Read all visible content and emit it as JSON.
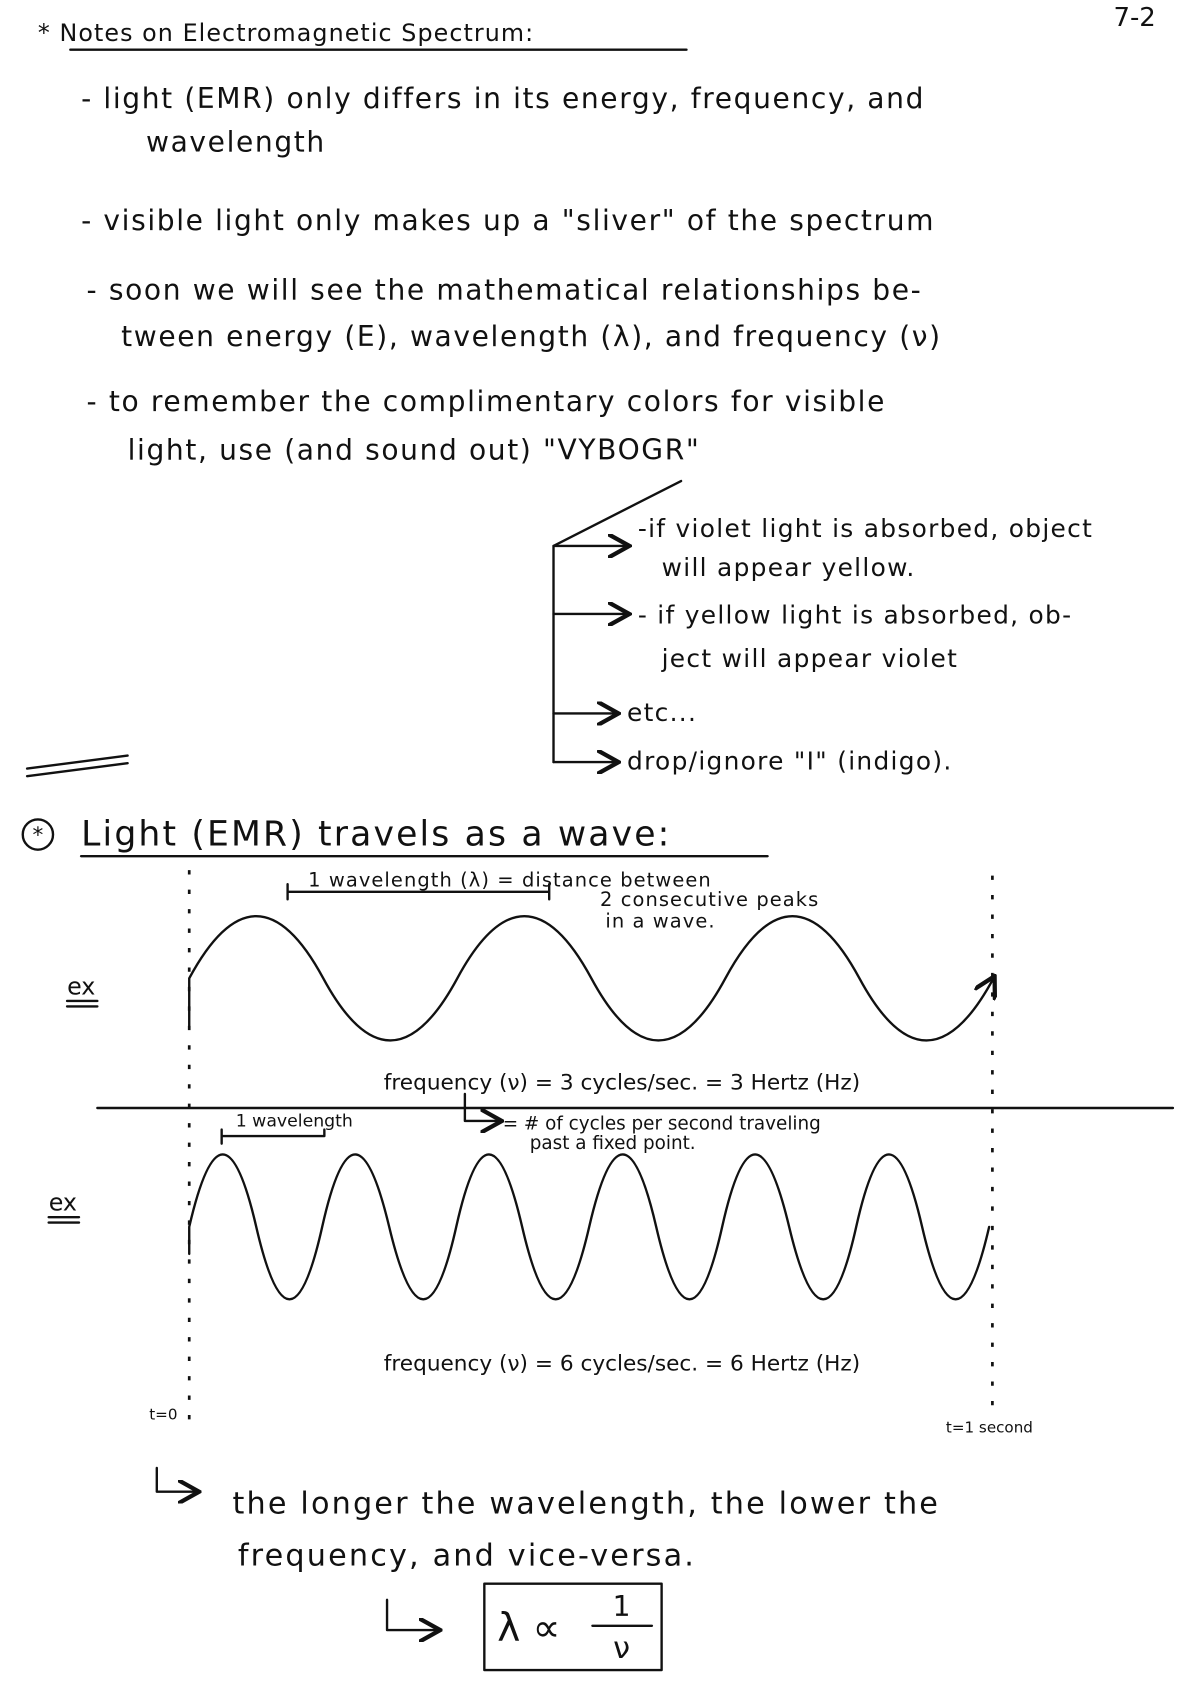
{
  "page_number": "7-2",
  "notes": {
    "title": "* Notes on Electromagnetic Spectrum:",
    "bullets": [
      [
        "- light (EMR) only differs in its energy, frequency, and",
        "wavelength"
      ],
      [
        "- visible light only makes up a \"sliver\" of the spectrum"
      ],
      [
        "- soon we will see the mathematical relationships be-",
        "tween energy (E), wavelength (λ), and frequency (ν)"
      ],
      [
        "- to remember the complimentary colors for visible",
        "light, use (and sound out) \"VYBOGR\""
      ]
    ],
    "sub_items": [
      [
        "-if violet light is absorbed, object",
        "will appear yellow."
      ],
      [
        "- if yellow light is absorbed, ob-",
        "ject will appear violet"
      ],
      [
        "etc..."
      ],
      [
        "drop/ignore \"I\" (indigo)."
      ]
    ]
  },
  "wave_section": {
    "title": "Light (EMR) travels as a wave:",
    "example_1": {
      "label": "ex",
      "annotation": [
        "1 wavelength (λ) = distance between",
        "2 consecutive peaks",
        "in a wave."
      ],
      "frequency": "frequency (ν) = 3 cycles/sec. = 3 Hertz (Hz)",
      "definition": [
        "= # of cycles per second traveling",
        "past a fixed point."
      ]
    },
    "example_2": {
      "label": "ex",
      "annotation": "1 wavelength",
      "frequency": "frequency (ν) = 6 cycles/sec. = 6 Hertz (Hz)",
      "start_label": "t=0",
      "end_label": "t=1 second"
    },
    "conclusion": [
      "the longer the wavelength, the lower the",
      "frequency, and vice-versa."
    ],
    "formula": {
      "left": "λ ∝",
      "numerator": "1",
      "denominator": "ν"
    }
  }
}
